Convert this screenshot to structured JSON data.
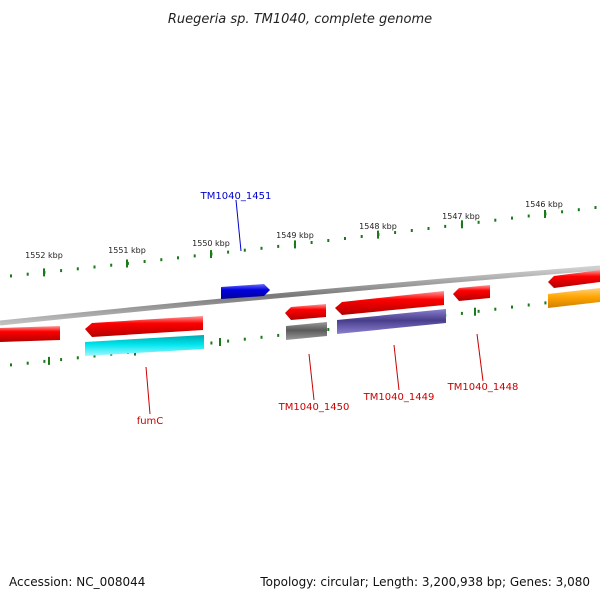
{
  "header": {
    "title": "Ruegeria sp. TM1040, complete genome"
  },
  "footer": {
    "accession": "Accession: NC_008044",
    "topology": "Topology: circular; Length: 3,200,938 bp; Genes: 3,080"
  },
  "ticks": {
    "outer": [
      "1552 kbp",
      "1551 kbp",
      "1550 kbp",
      "1549 kbp",
      "1548 kbp",
      "1547 kbp",
      "1546 kbp"
    ]
  },
  "genes": {
    "labels": [
      "TM1040_1451",
      "fumC",
      "TM1040_1450",
      "TM1040_1449",
      "TM1040_1448"
    ]
  },
  "colors": {
    "backbone": "#8a8a8a",
    "tick": "#1a7a1a",
    "gene": "#ff0000",
    "feature_blue": "#0000dd",
    "feature_cyan": "#00e5ee",
    "feature_gray": "#666666",
    "feature_purple": "#483d8b",
    "feature_orange": "#ffa500",
    "label_blue": "#0000cc",
    "label_red": "#cc0000"
  }
}
